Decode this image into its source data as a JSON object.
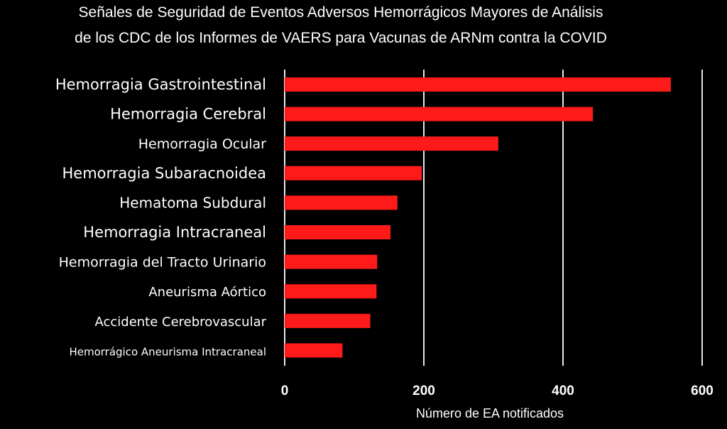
{
  "chart_data": {
    "type": "bar",
    "orientation": "horizontal",
    "title_lines": [
      "Señales de Seguridad de Eventos Adversos Hemorrágicos Mayores de Análisis",
      "de los CDC de los Informes de VAERS para Vacunas de ARNm contra la COVID"
    ],
    "categories": [
      "Hemorragia Gastrointestinal",
      "Hemorragia Cerebral",
      "Hemorragia Ocular",
      "Hemorragia Subaracnoidea",
      "Hematoma Subdural",
      "Hemorragia Intracraneal",
      "Hemorragia del Tracto Urinario",
      "Aneurisma Aórtico",
      "Accidente Cerebrovascular",
      "Hemorrágico Aneurisma Intracraneal"
    ],
    "values": [
      555,
      443,
      307,
      197,
      162,
      152,
      133,
      132,
      123,
      83
    ],
    "xlabel": "Número de EA notificados",
    "ylabel": "",
    "xlim": [
      0,
      600
    ],
    "xticks": [
      0,
      200,
      400,
      600
    ],
    "grid": true,
    "bar_color": "#ff1a1a",
    "background_color": "#000000"
  }
}
